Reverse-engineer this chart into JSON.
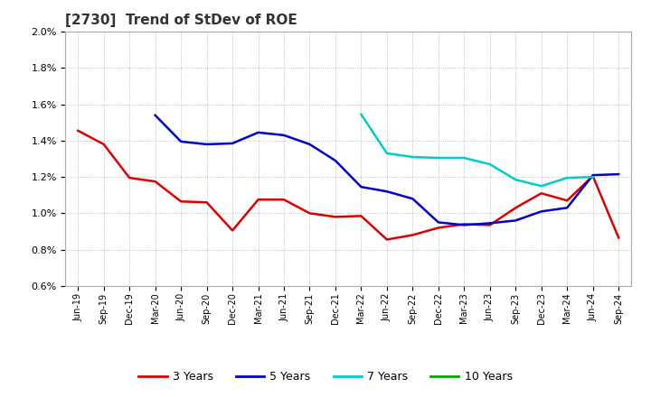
{
  "title": "[2730]  Trend of StDev of ROE",
  "title_fontsize": 11,
  "background_color": "#ffffff",
  "grid_color": "#aaaaaa",
  "x_labels": [
    "Jun-19",
    "Sep-19",
    "Dec-19",
    "Mar-20",
    "Jun-20",
    "Sep-20",
    "Dec-20",
    "Mar-21",
    "Jun-21",
    "Sep-21",
    "Dec-21",
    "Mar-22",
    "Jun-22",
    "Sep-22",
    "Dec-22",
    "Mar-23",
    "Jun-23",
    "Sep-23",
    "Dec-23",
    "Mar-24",
    "Jun-24",
    "Sep-24"
  ],
  "ylim": [
    0.006,
    0.02
  ],
  "yticks": [
    0.006,
    0.008,
    0.01,
    0.012,
    0.014,
    0.016,
    0.018,
    0.02
  ],
  "series": {
    "3 Years": {
      "color": "#dd0000",
      "data_x": [
        0,
        1,
        2,
        3,
        4,
        5,
        6,
        7,
        8,
        9,
        10,
        11,
        12,
        13,
        14,
        15,
        16,
        17,
        18,
        19,
        20,
        21
      ],
      "data_y": [
        0.01455,
        0.0138,
        0.01195,
        0.01175,
        0.01065,
        0.0106,
        0.00905,
        0.01075,
        0.01075,
        0.01,
        0.0098,
        0.00985,
        0.00855,
        0.0088,
        0.0092,
        0.0094,
        0.00935,
        0.0103,
        0.0111,
        0.0107,
        0.01205,
        0.00865
      ]
    },
    "5 Years": {
      "color": "#0000cc",
      "data_x": [
        3,
        4,
        5,
        6,
        7,
        8,
        9,
        10,
        11,
        12,
        13,
        14,
        15,
        16,
        17,
        18,
        19,
        20,
        21
      ],
      "data_y": [
        0.0154,
        0.01395,
        0.0138,
        0.01385,
        0.01445,
        0.0143,
        0.0138,
        0.0129,
        0.01145,
        0.0112,
        0.0108,
        0.0095,
        0.00935,
        0.00945,
        0.0096,
        0.0101,
        0.0103,
        0.0121,
        0.01215
      ]
    },
    "7 Years": {
      "color": "#00cccc",
      "data_x": [
        11,
        12,
        13,
        14,
        15,
        16,
        17,
        18,
        19,
        20
      ],
      "data_y": [
        0.01545,
        0.0133,
        0.0131,
        0.01305,
        0.01305,
        0.0127,
        0.01185,
        0.0115,
        0.01195,
        0.012
      ]
    },
    "10 Years": {
      "color": "#00aa00",
      "data_x": [],
      "data_y": []
    }
  },
  "legend": {
    "entries": [
      "3 Years",
      "5 Years",
      "7 Years",
      "10 Years"
    ],
    "colors": [
      "#dd0000",
      "#0000cc",
      "#00cccc",
      "#00aa00"
    ],
    "ncol": 4
  }
}
